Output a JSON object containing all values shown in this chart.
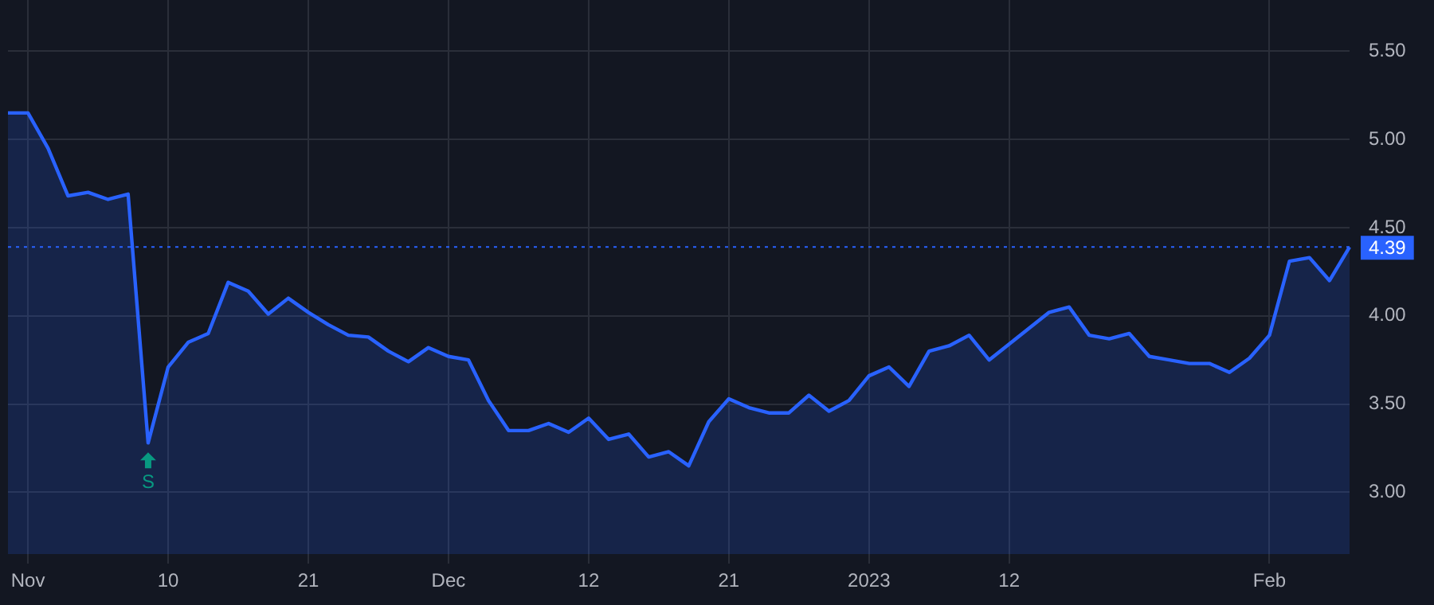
{
  "chart_data": {
    "type": "area",
    "categories": [
      null,
      "Nov",
      null,
      null,
      null,
      null,
      null,
      null,
      "10",
      null,
      null,
      null,
      null,
      null,
      null,
      "21",
      null,
      null,
      null,
      null,
      null,
      null,
      "Dec",
      null,
      null,
      null,
      null,
      null,
      null,
      "12",
      null,
      null,
      null,
      null,
      null,
      null,
      "21",
      null,
      null,
      null,
      null,
      null,
      null,
      "2023",
      null,
      null,
      null,
      null,
      null,
      null,
      "12",
      null,
      null,
      null,
      null,
      null,
      null,
      null,
      null,
      null,
      null,
      null,
      null,
      "Feb",
      null,
      null,
      null,
      null
    ],
    "series": [
      {
        "color": "#2962ff",
        "values": [
          5.15,
          5.15,
          4.95,
          4.68,
          4.7,
          4.66,
          4.69,
          3.28,
          3.71,
          3.85,
          3.9,
          4.19,
          4.14,
          4.01,
          4.1,
          4.02,
          3.95,
          3.89,
          3.88,
          3.8,
          3.74,
          3.82,
          3.77,
          3.75,
          3.52,
          3.35,
          3.35,
          3.39,
          3.34,
          3.42,
          3.3,
          3.33,
          3.2,
          3.23,
          3.15,
          3.4,
          3.53,
          3.48,
          3.45,
          3.45,
          3.55,
          3.46,
          3.52,
          3.66,
          3.71,
          3.6,
          3.8,
          3.83,
          3.89,
          3.75,
          3.84,
          3.93,
          4.02,
          4.05,
          3.89,
          3.87,
          3.9,
          3.77,
          3.75,
          3.73,
          3.73,
          3.68,
          3.76,
          3.89,
          4.31,
          4.33,
          4.2,
          4.39
        ]
      }
    ],
    "ylim": [
      2.65,
      5.79
    ],
    "yticks": [
      {
        "value": 3,
        "label": "3.00"
      },
      {
        "value": 3.5,
        "label": "3.50"
      },
      {
        "value": 4,
        "label": "4.00"
      },
      {
        "value": 4.5,
        "label": "4.50"
      },
      {
        "value": 5,
        "label": "5.00"
      },
      {
        "value": 5.5,
        "label": "5.50"
      }
    ],
    "grid": true,
    "legend": false,
    "ref_lines": [
      {
        "axis": "y",
        "value": 4.39,
        "label": "4.39",
        "color": "#2962ff",
        "line_style": "dotted"
      }
    ],
    "annotations": [
      {
        "text": "S",
        "y": 3.28
      }
    ]
  }
}
